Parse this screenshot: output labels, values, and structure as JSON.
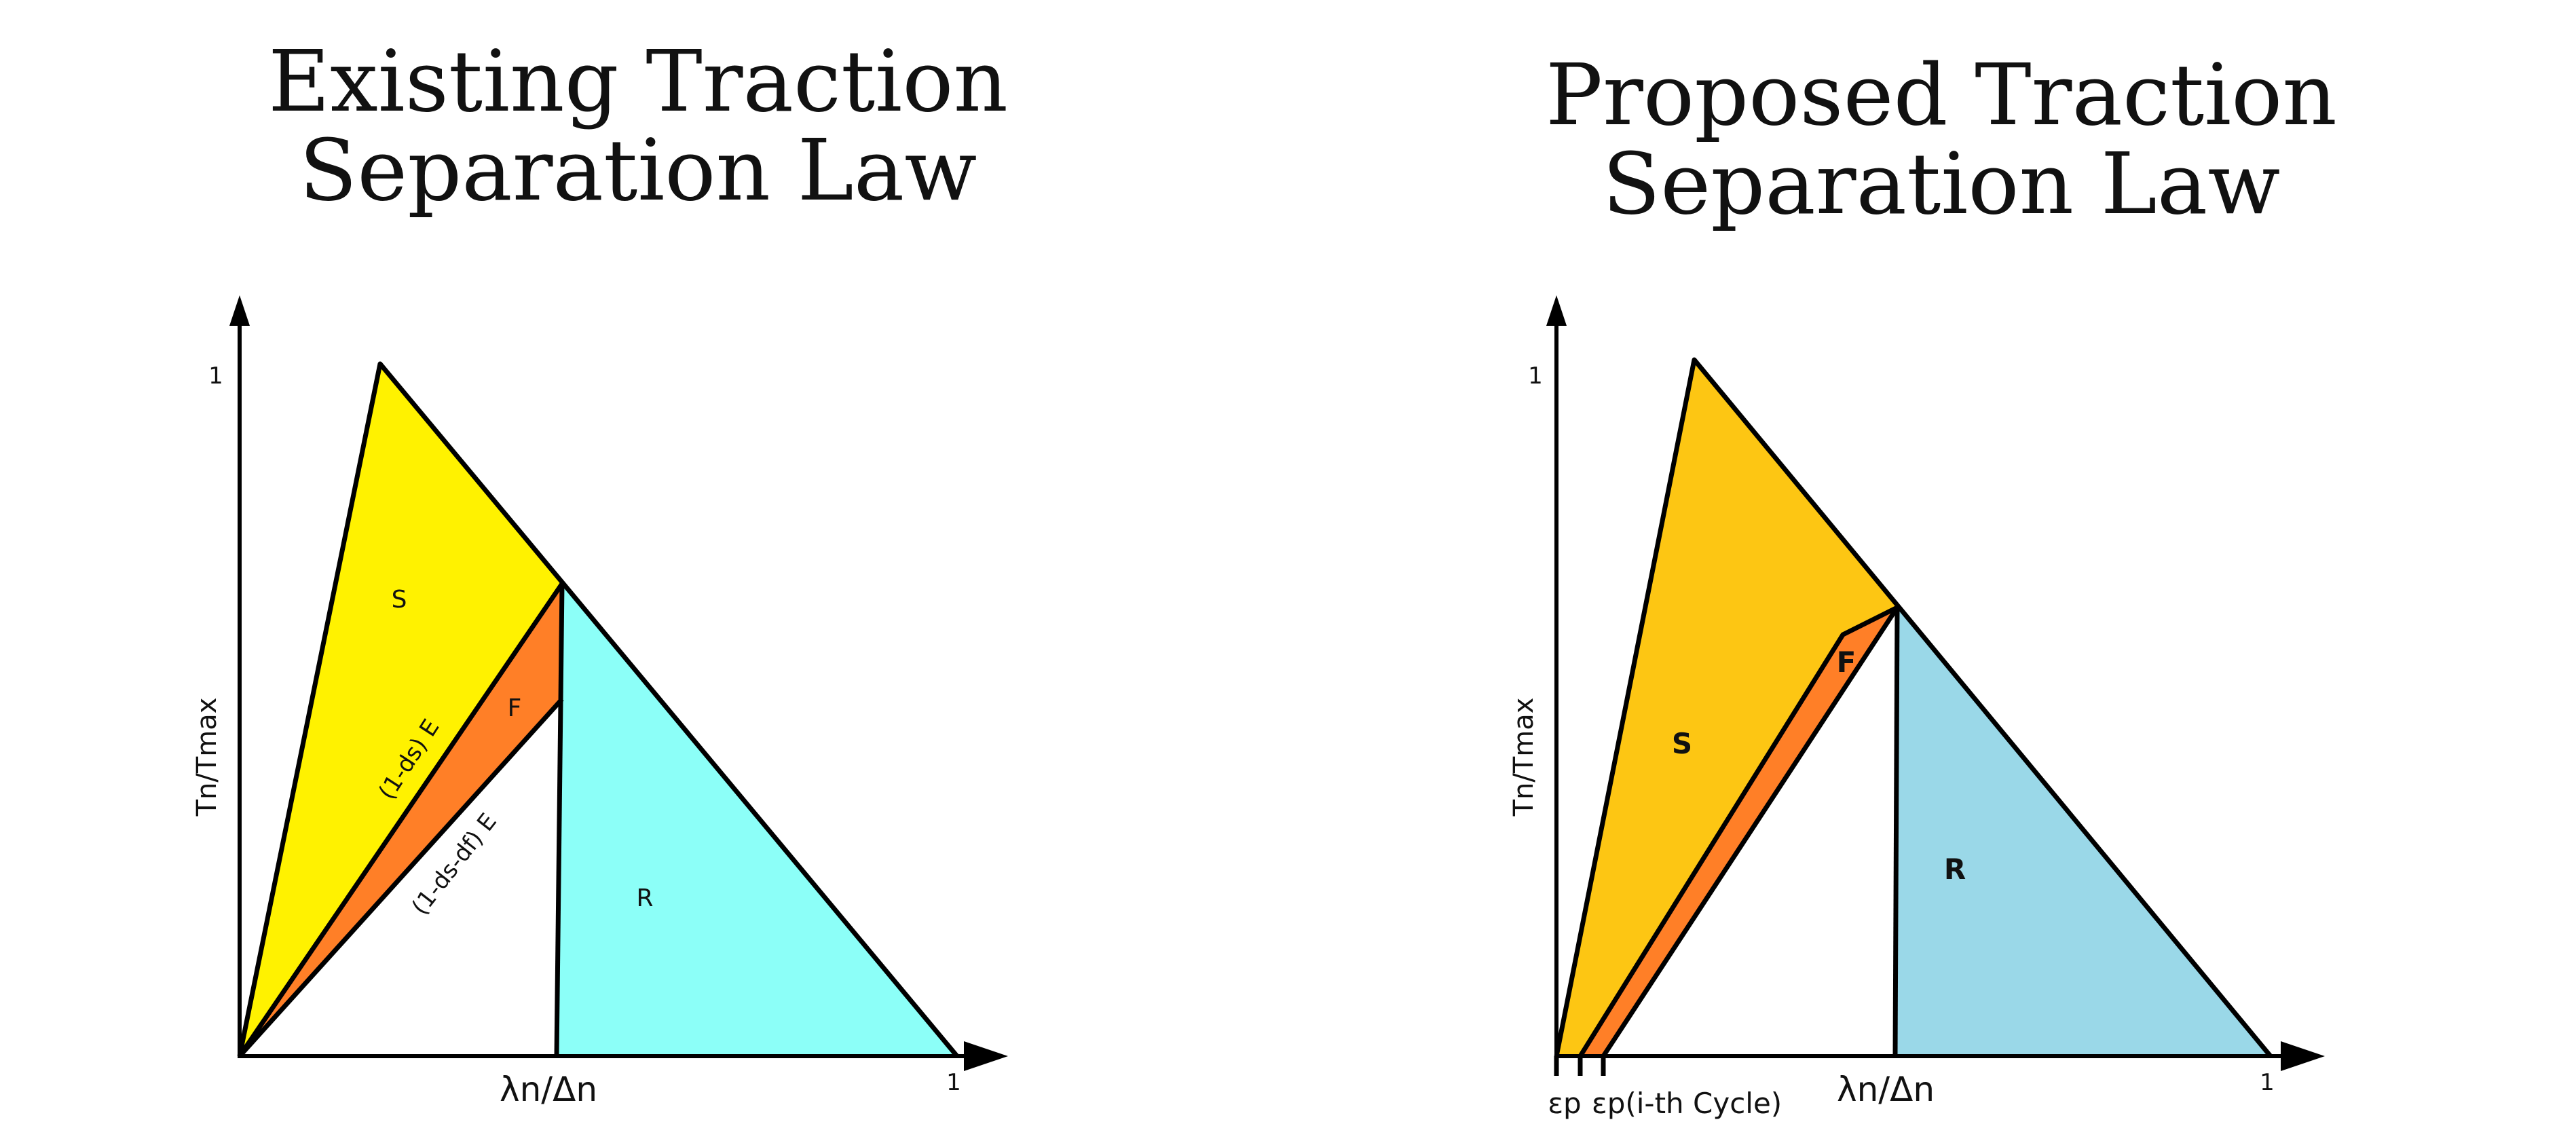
{
  "left_panel": {
    "title": "Existing Traction Separation Law",
    "tick_y_one": "1",
    "tick_x_one": "1",
    "y_axis_label": "Tn/Tmax",
    "x_axis_label": "λn/Δn",
    "region_s": "S",
    "region_f": "F",
    "region_r": "R",
    "line_label_upper": "(1-ds) E",
    "line_label_lower": "(1-ds-df) E"
  },
  "right_panel": {
    "title": "Proposed Traction Separation Law",
    "tick_y_one": "1",
    "tick_x_one": "1",
    "y_axis_label": "Tn/Tmax",
    "x_axis_label": "λn/Δn",
    "region_s": "S",
    "region_f": "F",
    "region_r": "R",
    "x_marker_1": "εp",
    "x_marker_2": "εp(i-th Cycle)"
  },
  "colors": {
    "left_s": "#FFF200",
    "left_f": "#FF7F27",
    "left_r": "#8CFFF8",
    "right_s": "#FDC613",
    "right_f": "#FF7F27",
    "right_r": "#9AD8E8",
    "line": "#000000"
  }
}
